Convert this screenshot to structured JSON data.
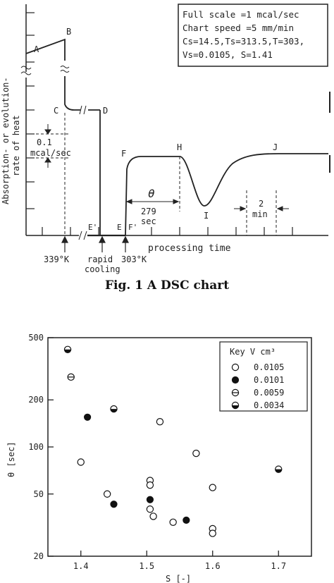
{
  "figure1": {
    "caption": "Fig. 1   A DSC chart",
    "info_lines": [
      "Full scale =1 mcal/sec",
      "Chart speed =5 mm/min",
      "Cs=14.5,Ts=313.5,T=303,",
      "Vs=0.0105, S=1.41"
    ],
    "ylabel_line1": "Absorption- or evolution-",
    "ylabel_line2": "rate of heat",
    "xlabel": "processing time",
    "point_labels": [
      "A",
      "B",
      "C",
      "D",
      "E'",
      "E",
      "F",
      "F'",
      "H",
      "I",
      "J"
    ],
    "scale_label_line1": "0.1",
    "scale_label_line2": "mcal/sec",
    "theta_symbol": "θ",
    "theta_value": "279",
    "theta_unit": "sec",
    "speed_value": "2",
    "speed_unit": "min",
    "marker_339": "339°K",
    "marker_rapid_1": "rapid",
    "marker_rapid_2": "cooling",
    "marker_303": "303°K"
  },
  "chart_data": {
    "type": "scatter",
    "xlabel": "S [-]",
    "ylabel": "θ [sec]",
    "xlim": [
      1.35,
      1.75
    ],
    "ylim": [
      20,
      500
    ],
    "yscale": "log",
    "x_ticks": [
      "1.4",
      "1.5",
      "1.6",
      "1.7"
    ],
    "y_ticks": [
      "20",
      "50",
      "100",
      "200",
      "500"
    ],
    "legend_title": "Key   V cm³",
    "legend_position": "top-right",
    "series": [
      {
        "name": "0.0105",
        "marker": "open-circle",
        "points": [
          [
            1.4,
            80
          ],
          [
            1.44,
            50
          ],
          [
            1.505,
            40
          ],
          [
            1.505,
            61
          ],
          [
            1.505,
            57
          ],
          [
            1.51,
            36
          ],
          [
            1.52,
            145
          ],
          [
            1.54,
            33
          ],
          [
            1.575,
            91
          ],
          [
            1.6,
            55
          ],
          [
            1.6,
            30
          ],
          [
            1.6,
            28
          ]
        ]
      },
      {
        "name": "0.0101",
        "marker": "filled-circle",
        "points": [
          [
            1.41,
            155
          ],
          [
            1.45,
            43
          ],
          [
            1.505,
            46
          ],
          [
            1.56,
            34
          ]
        ]
      },
      {
        "name": "0.0059",
        "marker": "circle-hline",
        "points": [
          [
            1.385,
            280
          ]
        ]
      },
      {
        "name": "0.0034",
        "marker": "half-filled-circle",
        "points": [
          [
            1.38,
            420
          ],
          [
            1.45,
            175
          ],
          [
            1.7,
            72
          ]
        ]
      }
    ]
  }
}
